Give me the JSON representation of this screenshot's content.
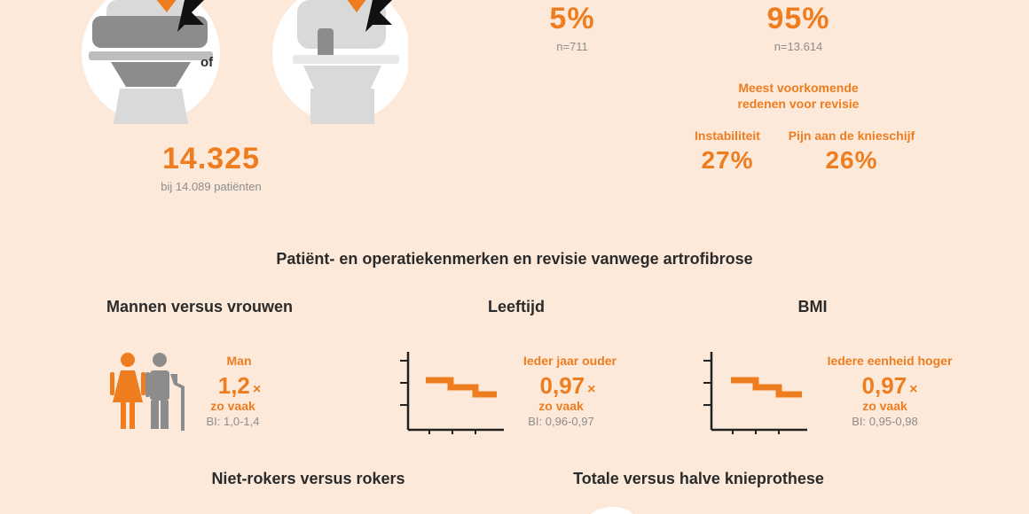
{
  "top": {
    "connector_of": "of",
    "total_count": "14.325",
    "patients_note": "bij 14.089 patiënten",
    "pct_left": "5%",
    "n_left": "n=711",
    "pct_right": "95%",
    "n_right": "n=13.614",
    "reasons_title": "Meest voorkomende redenen voor revisie",
    "reasons": [
      {
        "label": "Instabiliteit",
        "value": "27%"
      },
      {
        "label": "Pijn aan de knieschijf",
        "value": "26%"
      }
    ]
  },
  "section_title": "Patiënt- en operatiekenmerken en revisie vanwege artrofibrose",
  "panels": [
    {
      "title": "Mannen versus vrouwen",
      "label": "Man",
      "value": "1,2",
      "x": "×",
      "freq": "zo vaak",
      "ci": "BI: 1,0-1,4"
    },
    {
      "title": "Leeftijd",
      "label": "Ieder jaar ouder",
      "value": "0,97",
      "x": "×",
      "freq": "zo vaak",
      "ci": "BI: 0,96-0,97"
    },
    {
      "title": "BMI",
      "label": "Iedere eenheid hoger",
      "value": "0,97",
      "x": "×",
      "freq": "zo vaak",
      "ci": "BI: 0,95-0,98"
    }
  ],
  "bottom": {
    "smokers_title": "Niet-rokers versus rokers",
    "prosthesis_title": "Totale versus halve knieprothese"
  },
  "colors": {
    "accent": "#ee7d1f",
    "bg": "#fde9d9",
    "bone": "#d9d9d9",
    "metal": "#8c8c8c"
  }
}
